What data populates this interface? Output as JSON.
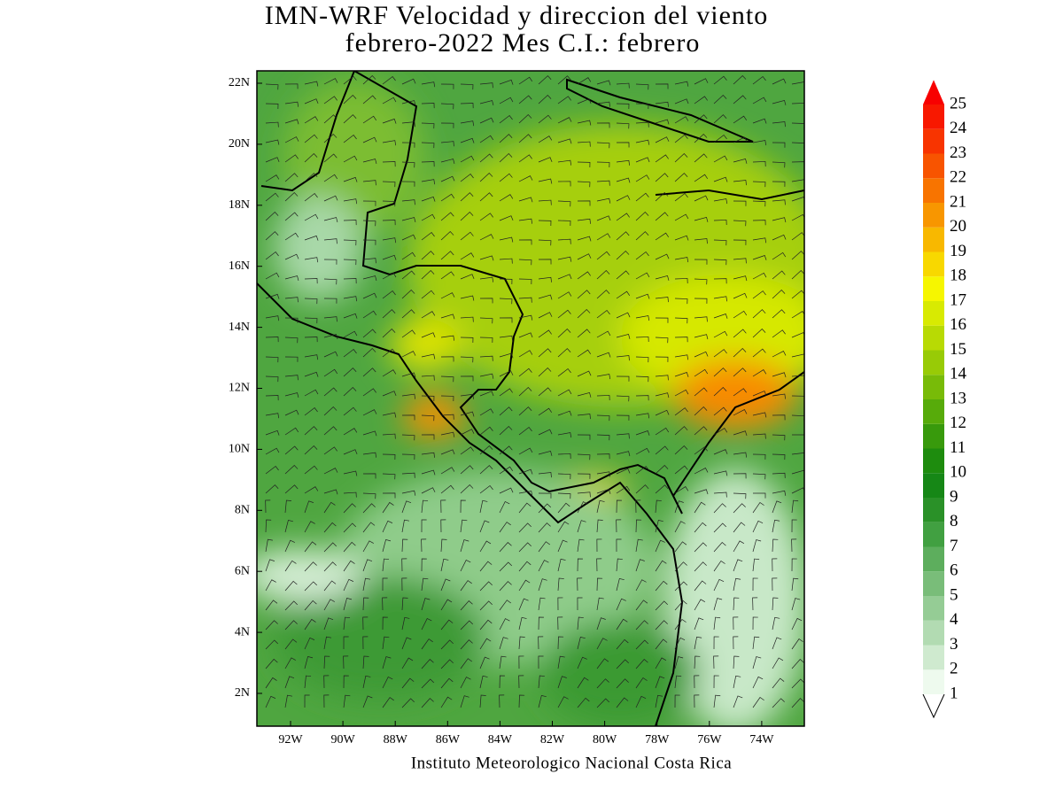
{
  "title": [
    "IMN-WRF Velocidad y direccion del viento",
    "febrero-2022 Mes C.I.: febrero"
  ],
  "map": {
    "lat_labels": [
      "22N",
      "20N",
      "18N",
      "16N",
      "14N",
      "12N",
      "10N",
      "8N",
      "6N",
      "4N",
      "2N"
    ],
    "lon_labels": [
      "92W",
      "90W",
      "88W",
      "86W",
      "84W",
      "82W",
      "80W",
      "78W",
      "76W",
      "74W"
    ]
  },
  "colorbar": {
    "levels": [
      1,
      2,
      3,
      4,
      5,
      6,
      7,
      8,
      9,
      10,
      11,
      12,
      13,
      14,
      15,
      16,
      17,
      18,
      19,
      20,
      21,
      22,
      23,
      24,
      25
    ],
    "colors": [
      "#eefaee",
      "#cfeacf",
      "#b2dbb2",
      "#95cc95",
      "#79bd79",
      "#5dae5d",
      "#41a041",
      "#2a9128",
      "#168716",
      "#1e8c0e",
      "#389a0c",
      "#57ab0a",
      "#78bb08",
      "#98cb06",
      "#b8da04",
      "#d8ea02",
      "#f6f600",
      "#f8d800",
      "#f8b800",
      "#f89600",
      "#f87400",
      "#f85400",
      "#f83400",
      "#f81800",
      "#f80000"
    ]
  },
  "credit": "Instituto Meteorologico Nacional Costa Rica"
}
